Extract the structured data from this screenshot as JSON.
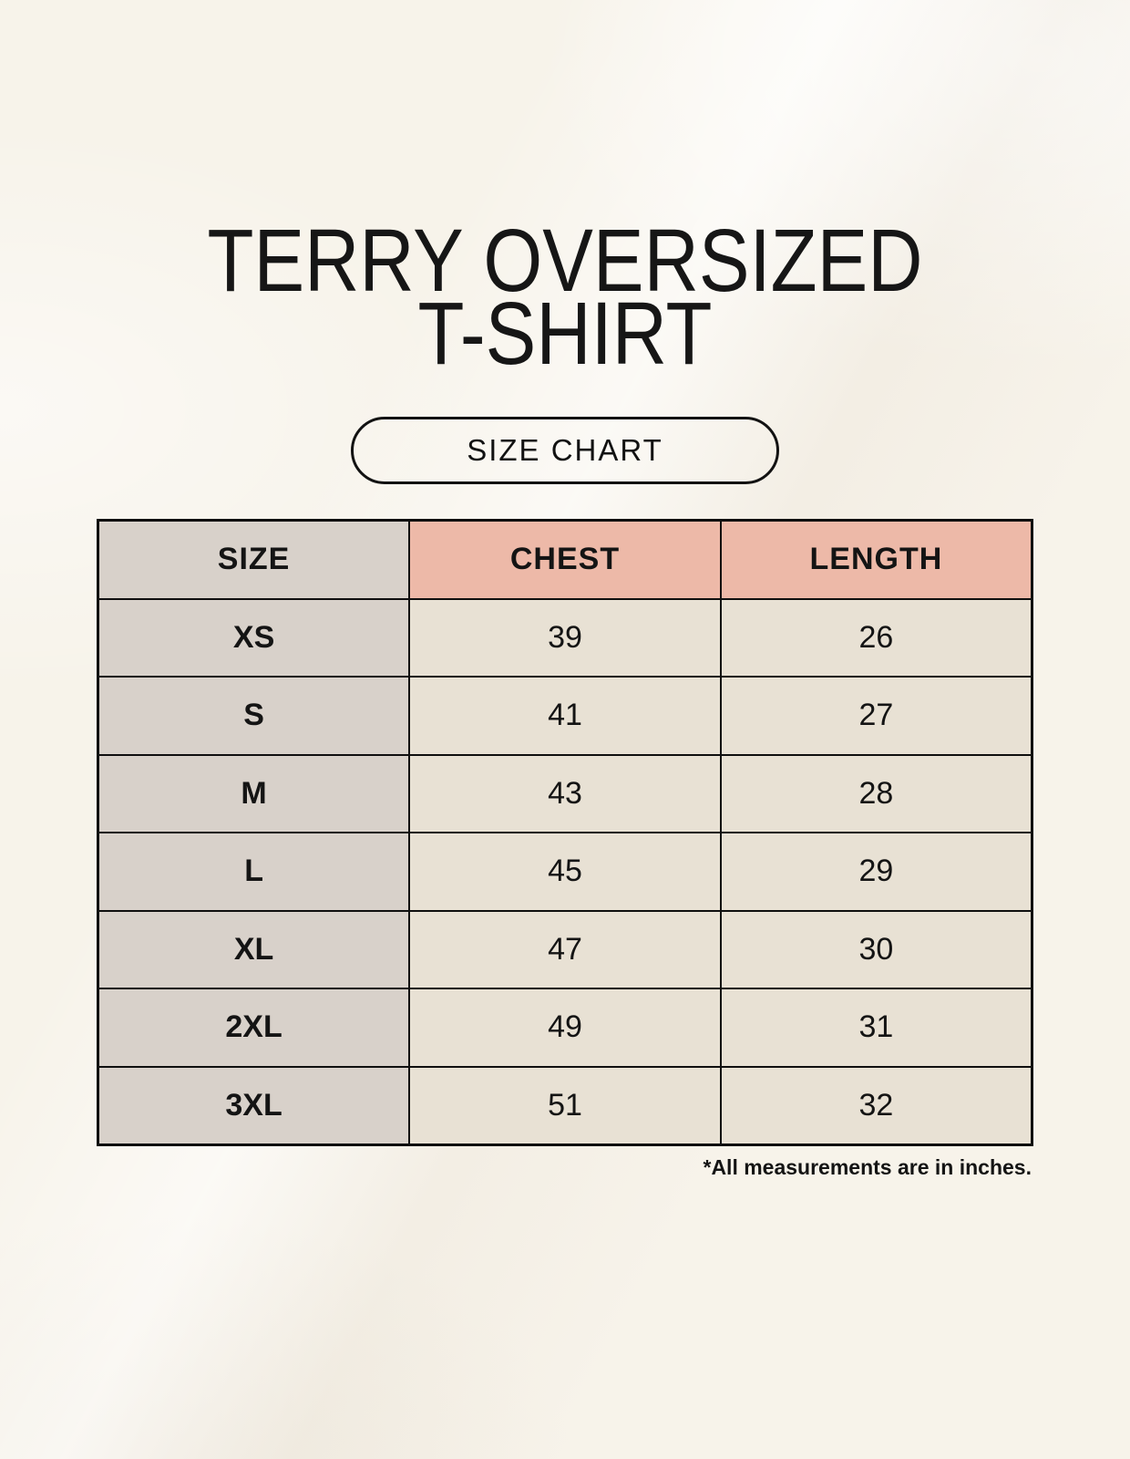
{
  "header": {
    "title_line1": "TERRY OVERSIZED",
    "title_line2": "T-SHIRT",
    "badge_label": "SIZE CHART"
  },
  "table": {
    "headers": [
      "SIZE",
      "CHEST",
      "LENGTH"
    ],
    "rows": [
      {
        "size": "XS",
        "chest": "39",
        "length": "26"
      },
      {
        "size": "S",
        "chest": "41",
        "length": "27"
      },
      {
        "size": "M",
        "chest": "43",
        "length": "28"
      },
      {
        "size": "L",
        "chest": "45",
        "length": "29"
      },
      {
        "size": "XL",
        "chest": "47",
        "length": "30"
      },
      {
        "size": "2XL",
        "chest": "49",
        "length": "31"
      },
      {
        "size": "3XL",
        "chest": "51",
        "length": "32"
      }
    ]
  },
  "footnote": "*All measurements are in inches.",
  "colors": {
    "background": "#F7F3EA",
    "header_pink": "#EDB9A8",
    "size_column_taupe": "#D8D1CA",
    "data_cell_beige": "#E8E1D4",
    "border": "#0F0F0F",
    "text": "#141414"
  }
}
